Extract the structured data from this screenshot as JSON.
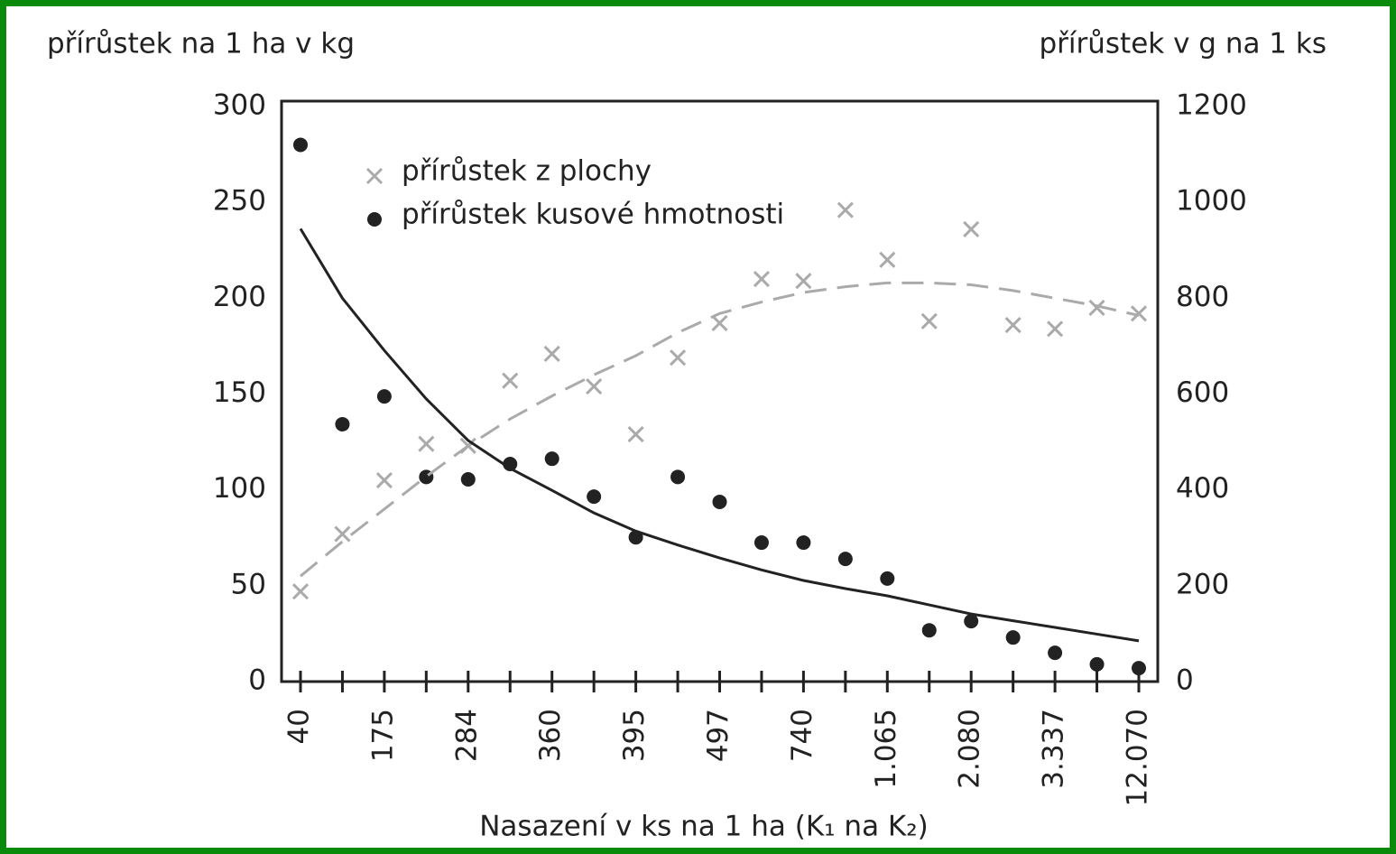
{
  "chart_data": {
    "type": "scatter",
    "y_label": "přírůstek na 1 ha v kg",
    "y2_label": "přírůstek v g na 1 ks",
    "x_label": "Nasazení  v ks na 1 ha (K₁ na K₂)",
    "categories": [
      "40",
      null,
      "175",
      null,
      "284",
      null,
      "360",
      null,
      "395",
      null,
      "497",
      null,
      "740",
      null,
      "1.065",
      null,
      "2.080",
      null,
      "3.337",
      null,
      "12.070"
    ],
    "ylim": [
      0,
      300
    ],
    "yticks": [
      0,
      50,
      100,
      150,
      200,
      250,
      300
    ],
    "y2lim": [
      0,
      1200
    ],
    "y2ticks": [
      0,
      200,
      400,
      600,
      800,
      1000,
      1200
    ],
    "legend": "upper left",
    "series": [
      {
        "name": "přírůstek z plochy",
        "color": "#aaaaaa",
        "marker": "x",
        "values": [
          47,
          77,
          105,
          124,
          123,
          157,
          171,
          154,
          129,
          169,
          187,
          210,
          209,
          246,
          220,
          188,
          236,
          186,
          184,
          195,
          192
        ]
      },
      {
        "name": "přírůstek kusové hmotnosti",
        "color": "#222222",
        "marker": "o",
        "axis": "y2",
        "values": [
          1120,
          537,
          595,
          427,
          422,
          454,
          465,
          386,
          301,
          427,
          375,
          290,
          290,
          256,
          215,
          107,
          126,
          92,
          60,
          36,
          28
        ]
      },
      {
        "color": "#aaaaaa",
        "line": "dashed",
        "values": [
          55,
          73,
          90,
          107,
          123,
          137,
          149,
          160,
          170,
          182,
          192,
          198,
          203,
          206,
          208,
          208,
          207,
          204,
          200,
          196,
          191
        ]
      },
      {
        "color": "#222222",
        "line": "solid",
        "axis": "y2",
        "values": [
          945,
          800,
          691,
          590,
          503,
          445,
          399,
          352,
          314,
          285,
          258,
          233,
          211,
          194,
          179,
          160,
          141,
          127,
          113,
          99,
          85
        ]
      }
    ]
  }
}
